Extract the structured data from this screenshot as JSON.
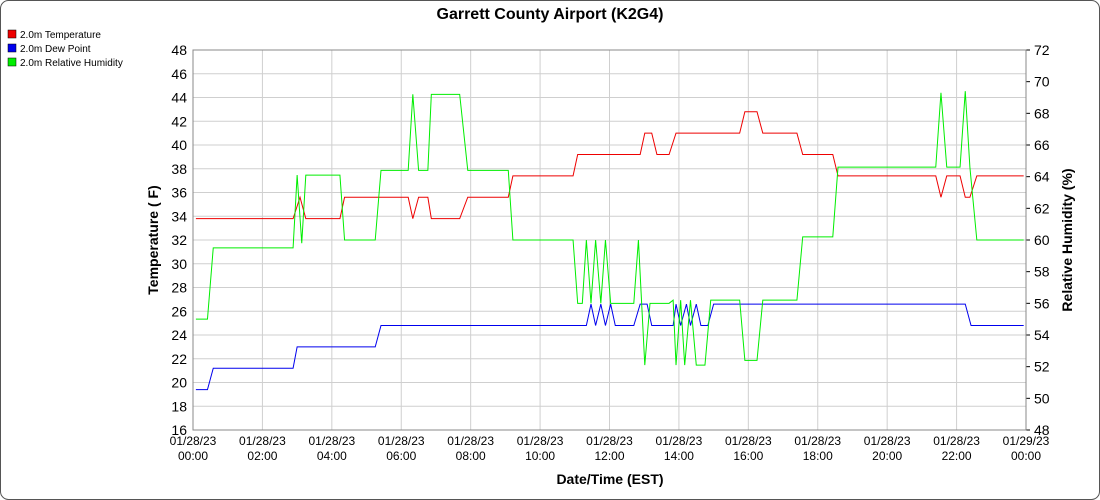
{
  "chart_data": {
    "type": "line",
    "title": "Garrett County Airport (K2G4)",
    "x_label": "Date/Time (EST)",
    "y_label": "Temperature ( F)",
    "y2_label": "Relative Humidity (%)",
    "xlim": [
      "01/28/23 00:00",
      "01/29/23 00:00"
    ],
    "xticks": [
      "01/28/23 00:00",
      "01/28/23 02:00",
      "01/28/23 04:00",
      "01/28/23 06:00",
      "01/28/23 08:00",
      "01/28/23 10:00",
      "01/28/23 12:00",
      "01/28/23 14:00",
      "01/28/23 16:00",
      "01/28/23 18:00",
      "01/28/23 20:00",
      "01/28/23 22:00",
      "01/29/23 00:00"
    ],
    "ylim": [
      16,
      48
    ],
    "yticks": [
      16,
      18,
      20,
      22,
      24,
      26,
      28,
      30,
      32,
      34,
      36,
      38,
      40,
      42,
      44,
      46,
      48
    ],
    "y2lim": [
      48,
      72
    ],
    "y2ticks": [
      48,
      50,
      52,
      54,
      56,
      58,
      60,
      62,
      64,
      66,
      68,
      70,
      72
    ],
    "grid": true,
    "legend": "top-left",
    "series": [
      {
        "name": "2.0m Temperature",
        "color": "#ee0000",
        "x": [
          "01/28/23 00:05",
          "01/28/23 02:53",
          "01/28/23 03:05",
          "01/28/23 03:15",
          "01/28/23 04:14",
          "01/28/23 04:22",
          "01/28/23 06:12",
          "01/28/23 06:20",
          "01/28/23 06:30",
          "01/28/23 06:46",
          "01/28/23 06:52",
          "01/28/23 07:41",
          "01/28/23 07:55",
          "01/28/23 09:05",
          "01/28/23 09:13",
          "01/28/23 10:57",
          "01/28/23 11:05",
          "01/28/23 12:53",
          "01/28/23 13:01",
          "01/28/23 13:13",
          "01/28/23 13:22",
          "01/28/23 13:43",
          "01/28/23 13:55",
          "01/28/23 15:45",
          "01/28/23 15:54",
          "01/28/23 16:15",
          "01/28/23 16:25",
          "01/28/23 17:24",
          "01/28/23 17:34",
          "01/28/23 18:26",
          "01/28/23 18:35",
          "01/28/23 21:24",
          "01/28/23 21:33",
          "01/28/23 21:43",
          "01/28/23 22:06",
          "01/28/23 22:15",
          "01/28/23 22:23",
          "01/28/23 22:35",
          "01/28/23 23:56"
        ],
        "values": [
          33.8,
          33.8,
          35.6,
          33.8,
          33.8,
          35.6,
          35.6,
          33.8,
          35.6,
          35.6,
          33.8,
          33.8,
          35.6,
          35.6,
          37.4,
          37.4,
          39.2,
          39.2,
          41,
          41,
          39.2,
          39.2,
          41,
          41,
          42.8,
          42.8,
          41,
          41,
          39.2,
          39.2,
          37.4,
          37.4,
          35.6,
          37.4,
          37.4,
          35.6,
          35.6,
          37.4,
          37.4
        ]
      },
      {
        "name": "2.0m Dew Point",
        "color": "#0000ee",
        "x": [
          "01/28/23 00:05",
          "01/28/23 00:25",
          "01/28/23 00:35",
          "01/28/23 02:53",
          "01/28/23 03:00",
          "01/28/23 05:15",
          "01/28/23 05:25",
          "01/28/23 11:20",
          "01/28/23 11:28",
          "01/28/23 11:36",
          "01/28/23 11:45",
          "01/28/23 11:53",
          "01/28/23 12:02",
          "01/28/23 12:10",
          "01/28/23 12:42",
          "01/28/23 12:53",
          "01/28/23 13:05",
          "01/28/23 13:13",
          "01/28/23 13:50",
          "01/28/23 13:55",
          "01/28/23 14:03",
          "01/28/23 14:13",
          "01/28/23 14:20",
          "01/28/23 14:30",
          "01/28/23 14:38",
          "01/28/23 14:50",
          "01/28/23 15:00",
          "01/28/23 22:15",
          "01/28/23 22:25",
          "01/28/23 23:56"
        ],
        "values": [
          19.4,
          19.4,
          21.2,
          21.2,
          23,
          23,
          24.8,
          24.8,
          26.6,
          24.8,
          26.6,
          24.8,
          26.6,
          24.8,
          24.8,
          26.6,
          26.6,
          24.8,
          24.8,
          26.6,
          24.8,
          26.6,
          24.8,
          26.6,
          24.8,
          24.8,
          26.6,
          26.6,
          24.8,
          24.8
        ]
      },
      {
        "name": "2.0m Relative Humidity",
        "color": "#00ee00",
        "axis": "y2",
        "x": [
          "01/28/23 00:05",
          "01/28/23 00:25",
          "01/28/23 00:35",
          "01/28/23 02:53",
          "01/28/23 03:00",
          "01/28/23 03:08",
          "01/28/23 03:15",
          "01/28/23 04:14",
          "01/28/23 04:22",
          "01/28/23 05:15",
          "01/28/23 05:25",
          "01/28/23 06:12",
          "01/28/23 06:20",
          "01/28/23 06:30",
          "01/28/23 06:46",
          "01/28/23 06:52",
          "01/28/23 07:41",
          "01/28/23 07:55",
          "01/28/23 09:05",
          "01/28/23 09:13",
          "01/28/23 10:57",
          "01/28/23 11:05",
          "01/28/23 11:13",
          "01/28/23 11:20",
          "01/28/23 11:28",
          "01/28/23 11:36",
          "01/28/23 11:45",
          "01/28/23 11:53",
          "01/28/23 12:02",
          "01/28/23 12:42",
          "01/28/23 12:50",
          "01/28/23 13:01",
          "01/28/23 13:10",
          "01/28/23 13:43",
          "01/28/23 13:50",
          "01/28/23 13:55",
          "01/28/23 14:03",
          "01/28/23 14:10",
          "01/28/23 14:20",
          "01/28/23 14:30",
          "01/28/23 14:45",
          "01/28/23 14:55",
          "01/28/23 15:45",
          "01/28/23 15:54",
          "01/28/23 16:15",
          "01/28/23 16:25",
          "01/28/23 17:24",
          "01/28/23 17:34",
          "01/28/23 18:26",
          "01/28/23 18:35",
          "01/28/23 21:24",
          "01/28/23 21:33",
          "01/28/23 21:43",
          "01/28/23 22:06",
          "01/28/23 22:15",
          "01/28/23 22:23",
          "01/28/23 22:35",
          "01/28/23 23:56"
        ],
        "values": [
          55,
          55,
          59.5,
          59.5,
          64.1,
          59.8,
          64.1,
          64.1,
          60,
          60,
          64.4,
          64.4,
          69.2,
          64.4,
          64.4,
          69.2,
          69.2,
          64.4,
          64.4,
          60,
          60,
          56,
          56,
          60,
          56,
          60,
          56,
          60,
          56,
          56,
          60,
          52.1,
          56,
          56,
          56.2,
          52.1,
          56.2,
          52.1,
          56.2,
          52.1,
          52.1,
          56.2,
          56.2,
          52.4,
          52.4,
          56.2,
          56.2,
          60.2,
          60.2,
          64.6,
          64.6,
          69.3,
          64.6,
          64.6,
          69.4,
          64.6,
          60,
          60
        ]
      }
    ]
  }
}
